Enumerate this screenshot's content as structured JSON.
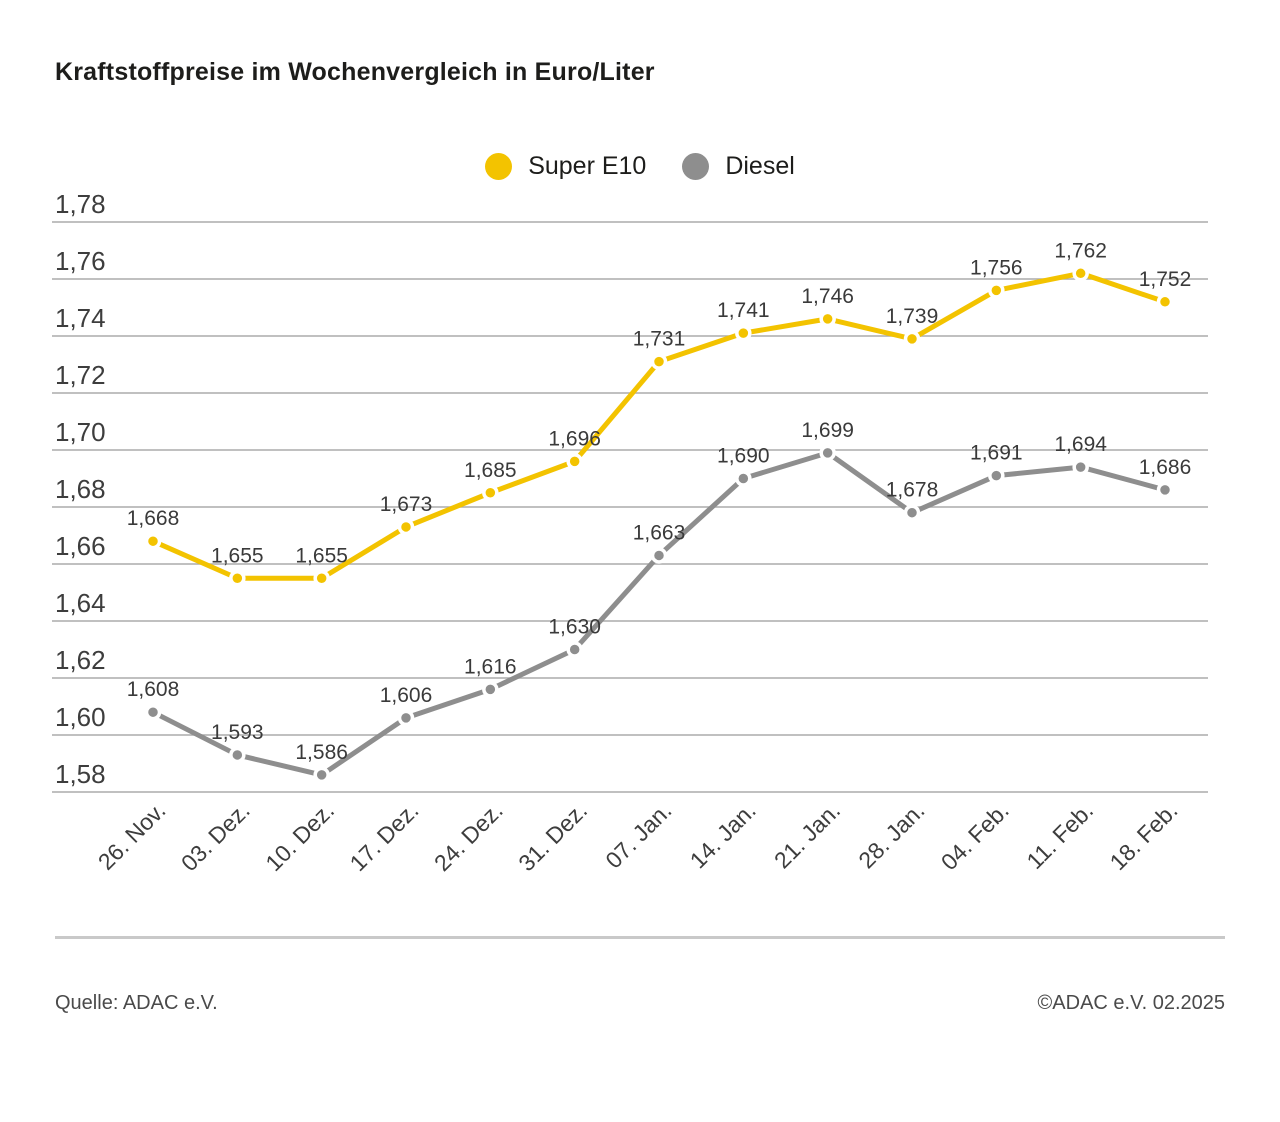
{
  "chart_data": {
    "type": "line",
    "title": "Kraftstoffpreise im Wochenvergleich in Euro/Liter",
    "categories": [
      "26. Nov.",
      "03. Dez.",
      "10. Dez.",
      "17. Dez.",
      "24. Dez.",
      "31. Dez.",
      "07. Jan.",
      "14. Jan.",
      "21. Jan.",
      "28. Jan.",
      "04. Feb.",
      "11. Feb.",
      "18. Feb."
    ],
    "series": [
      {
        "name": "Super E10",
        "color": "#F3C300",
        "values": [
          1.668,
          1.655,
          1.655,
          1.673,
          1.685,
          1.696,
          1.731,
          1.741,
          1.746,
          1.739,
          1.756,
          1.762,
          1.752
        ]
      },
      {
        "name": "Diesel",
        "color": "#8E8E8E",
        "values": [
          1.608,
          1.593,
          1.586,
          1.606,
          1.616,
          1.63,
          1.663,
          1.69,
          1.699,
          1.678,
          1.691,
          1.694,
          1.686
        ]
      }
    ],
    "ylim": [
      1.58,
      1.78
    ],
    "ytick_step": 0.02,
    "decimal_separator": ",",
    "value_labels": true,
    "grid": true,
    "legend_position": "top-center",
    "xlabel": "",
    "ylabel": ""
  },
  "footer": {
    "source": "Quelle: ADAC e.V.",
    "copyright": "©ADAC e.V. 02.2025"
  }
}
